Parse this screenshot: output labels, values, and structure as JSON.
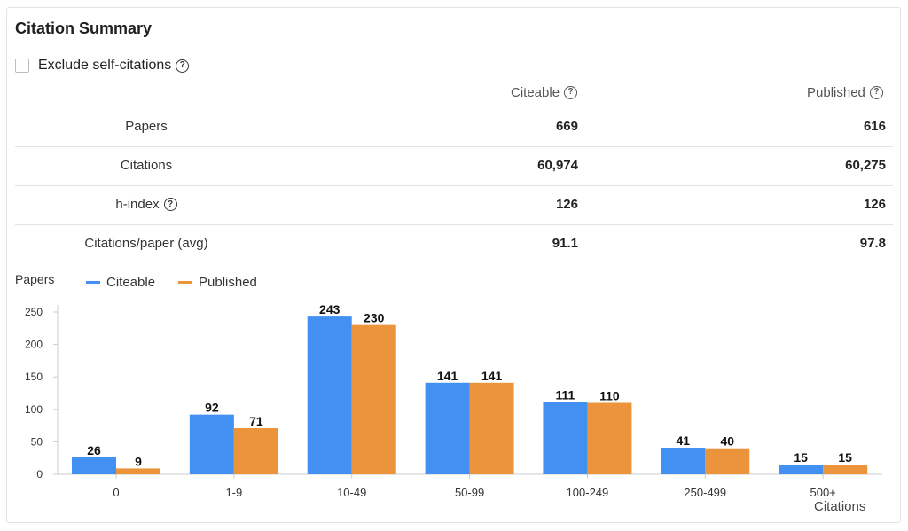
{
  "title": "Citation Summary",
  "exclude_self": {
    "label": "Exclude self-citations",
    "checked": false
  },
  "columns": {
    "citeable": "Citeable",
    "published": "Published"
  },
  "rows": [
    {
      "label": "Papers",
      "citeable": "669",
      "published": "616",
      "help": false
    },
    {
      "label": "Citations",
      "citeable": "60,974",
      "published": "60,275",
      "help": false
    },
    {
      "label": "h-index",
      "citeable": "126",
      "published": "126",
      "help": true
    },
    {
      "label": "Citations/paper (avg)",
      "citeable": "91.1",
      "published": "97.8",
      "help": false
    }
  ],
  "help_glyph": "?",
  "icons": {
    "help": "question-circle-icon"
  },
  "colors": {
    "citeable": "#4390f3",
    "published": "#ec943c",
    "axis": "#cccccc",
    "text": "#222222"
  },
  "chart_data": {
    "type": "bar",
    "title": "",
    "ylabel": "Papers",
    "xlabel": "Citations",
    "categories": [
      "0",
      "1-9",
      "10-49",
      "50-99",
      "100-249",
      "250-499",
      "500+"
    ],
    "series": [
      {
        "name": "Citeable",
        "values": [
          26,
          92,
          243,
          141,
          111,
          41,
          15
        ]
      },
      {
        "name": "Published",
        "values": [
          9,
          71,
          230,
          141,
          110,
          40,
          15
        ]
      }
    ],
    "ylim": [
      0,
      250
    ],
    "yticks": [
      0,
      50,
      100,
      150,
      200,
      250
    ],
    "legend": "top-left",
    "grid": false,
    "data_labels": true
  }
}
